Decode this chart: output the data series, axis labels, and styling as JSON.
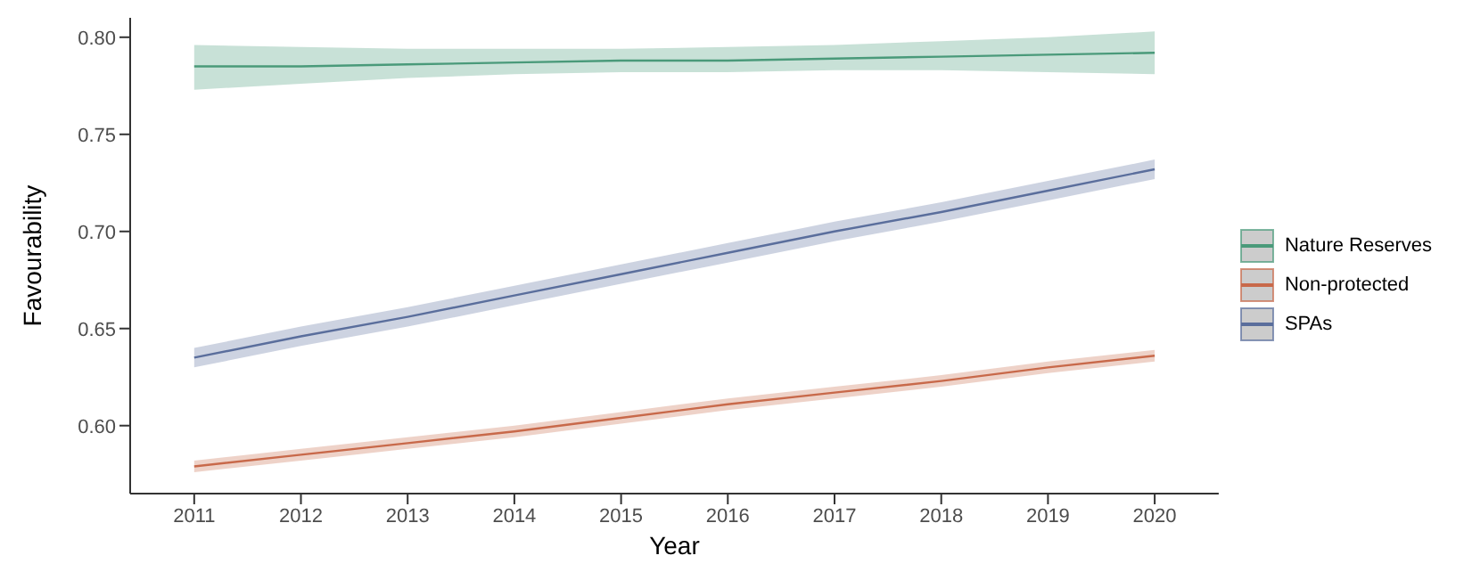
{
  "chart_data": {
    "type": "line",
    "xlabel": "Year",
    "ylabel": "Favourability",
    "x": [
      2011,
      2012,
      2013,
      2014,
      2015,
      2016,
      2017,
      2018,
      2019,
      2020
    ],
    "xlim": [
      2010.4,
      2020.6
    ],
    "xticks": [
      2011,
      2012,
      2013,
      2014,
      2015,
      2016,
      2017,
      2018,
      2019,
      2020
    ],
    "ylim": [
      0.565,
      0.81
    ],
    "yticks": [
      {
        "value": 0.6,
        "label": "0.60"
      },
      {
        "value": 0.65,
        "label": "0.65"
      },
      {
        "value": 0.7,
        "label": "0.70"
      },
      {
        "value": 0.75,
        "label": "0.75"
      },
      {
        "value": 0.8,
        "label": "0.80"
      }
    ],
    "grid": false,
    "legend": "right",
    "line_style": "solid",
    "series": [
      {
        "name": "Nature Reserves",
        "color": "#4a9a7a",
        "values": [
          0.785,
          0.785,
          0.786,
          0.787,
          0.788,
          0.788,
          0.789,
          0.79,
          0.791,
          0.792
        ],
        "lower": [
          0.773,
          0.776,
          0.779,
          0.781,
          0.782,
          0.782,
          0.783,
          0.783,
          0.782,
          0.781
        ],
        "upper": [
          0.796,
          0.795,
          0.794,
          0.794,
          0.794,
          0.795,
          0.796,
          0.798,
          0.8,
          0.803
        ]
      },
      {
        "name": "Non-protected",
        "color": "#c8694a",
        "values": [
          0.579,
          0.585,
          0.591,
          0.597,
          0.604,
          0.611,
          0.617,
          0.623,
          0.63,
          0.636
        ],
        "lower": [
          0.576,
          0.582,
          0.588,
          0.594,
          0.601,
          0.608,
          0.614,
          0.62,
          0.627,
          0.633
        ],
        "upper": [
          0.582,
          0.588,
          0.594,
          0.6,
          0.607,
          0.614,
          0.62,
          0.626,
          0.633,
          0.639
        ]
      },
      {
        "name": "SPAs",
        "color": "#5a6e9c",
        "values": [
          0.635,
          0.646,
          0.656,
          0.667,
          0.678,
          0.689,
          0.7,
          0.71,
          0.721,
          0.732
        ],
        "lower": [
          0.63,
          0.641,
          0.651,
          0.662,
          0.673,
          0.684,
          0.695,
          0.705,
          0.716,
          0.727
        ],
        "upper": [
          0.64,
          0.651,
          0.661,
          0.672,
          0.683,
          0.694,
          0.705,
          0.715,
          0.726,
          0.737
        ]
      }
    ]
  }
}
